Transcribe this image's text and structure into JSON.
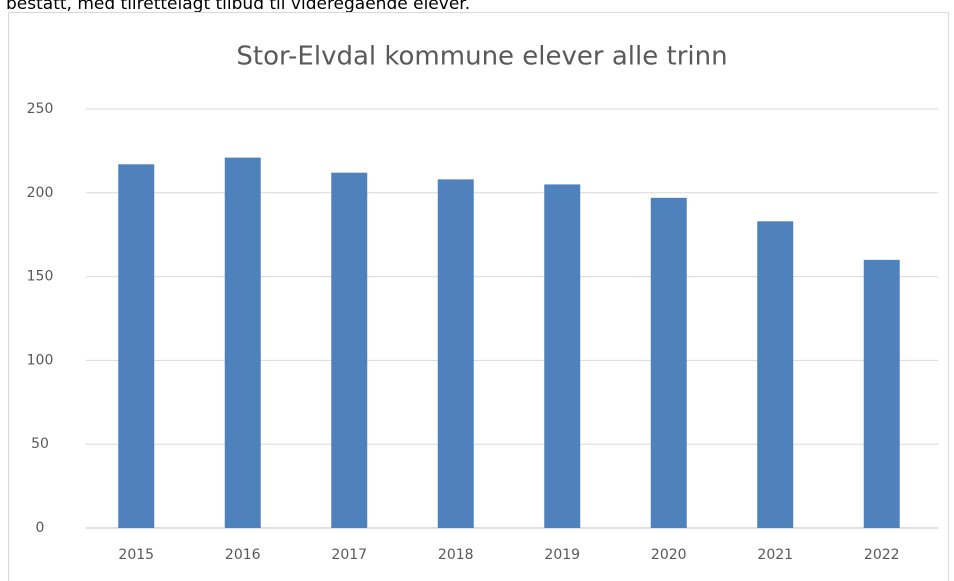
{
  "header_text": "bestått, med tilrettelagt tilbud til videregående elever.",
  "chart_data": {
    "type": "bar",
    "title": "Stor-Elvdal kommune elever alle trinn",
    "categories": [
      "2015",
      "2016",
      "2017",
      "2018",
      "2019",
      "2020",
      "2021",
      "2022"
    ],
    "values": [
      217,
      221,
      212,
      208,
      205,
      197,
      183,
      160
    ],
    "color": "#4f81bd",
    "ylim": [
      0,
      250
    ],
    "yticks": [
      0,
      50,
      100,
      150,
      200,
      250
    ],
    "grid": true
  }
}
